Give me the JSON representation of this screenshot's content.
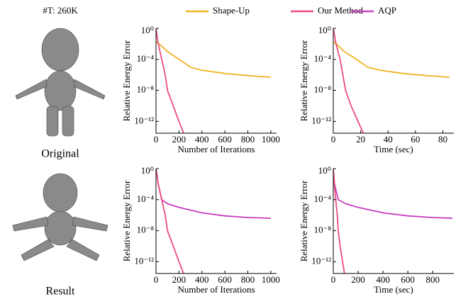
{
  "figure": {
    "triangle_count": "#T: 260K",
    "original_label": "Original",
    "result_label": "Result"
  },
  "chart_data": [
    {
      "type": "line",
      "ylabel": "Relative Energy Error",
      "xlabel": "Number of Iterations",
      "log_y": true,
      "xlim": [
        0,
        1050
      ],
      "xticks": [
        0,
        200,
        400,
        600,
        800,
        1000
      ],
      "ylim": [
        3e-14,
        1
      ],
      "yticks": [
        {
          "value": 1,
          "label": "10⁰"
        },
        {
          "value": 0.0001,
          "label": "10⁻⁴"
        },
        {
          "value": 1e-08,
          "label": "10⁻⁸"
        },
        {
          "value": 1e-12,
          "label": "10⁻¹²"
        }
      ],
      "series": [
        {
          "name": "Shape-Up",
          "color": "#f0b323",
          "x": [
            0,
            50,
            100,
            200,
            300,
            400,
            600,
            800,
            1000
          ],
          "values": [
            0.02,
            0.005,
            0.001,
            0.0001,
            1e-05,
            4e-06,
            1.5e-06,
            8e-07,
            5e-07
          ]
        },
        {
          "name": "Our Method",
          "color": "#ec4c7c",
          "x": [
            0,
            20,
            50,
            80,
            100,
            150,
            200,
            240
          ],
          "values": [
            1,
            0.01,
            0.0001,
            1e-06,
            1e-08,
            1e-10,
            1e-12,
            3e-14
          ]
        }
      ]
    },
    {
      "type": "line",
      "ylabel": "Relative Energy Error",
      "xlabel": "Time (sec)",
      "log_y": true,
      "xlim": [
        0,
        88
      ],
      "xticks": [
        0,
        20,
        40,
        60,
        80
      ],
      "ylim": [
        3e-14,
        1
      ],
      "yticks": [
        {
          "value": 1,
          "label": "10⁰"
        },
        {
          "value": 0.0001,
          "label": "10⁻⁴"
        },
        {
          "value": 1e-08,
          "label": "10⁻⁸"
        },
        {
          "value": 1e-12,
          "label": "10⁻¹²"
        }
      ],
      "series": [
        {
          "name": "Shape-Up",
          "color": "#f0b323",
          "x": [
            0,
            4,
            8,
            17,
            25,
            34,
            51,
            68,
            85
          ],
          "values": [
            0.02,
            0.005,
            0.001,
            0.0001,
            1e-05,
            4e-06,
            1.5e-06,
            8e-07,
            5e-07
          ]
        },
        {
          "name": "Our Method",
          "color": "#ec4c7c",
          "x": [
            0,
            2,
            5,
            7,
            9,
            13,
            18,
            22
          ],
          "values": [
            1,
            0.01,
            0.0001,
            1e-06,
            1e-08,
            1e-10,
            1e-12,
            3e-14
          ]
        }
      ]
    },
    {
      "type": "line",
      "ylabel": "Relative Energy Error",
      "xlabel": "Number of Iterations",
      "log_y": true,
      "xlim": [
        0,
        1050
      ],
      "xticks": [
        0,
        200,
        400,
        600,
        800,
        1000
      ],
      "ylim": [
        3e-14,
        1
      ],
      "yticks": [
        {
          "value": 1,
          "label": "10⁰"
        },
        {
          "value": 0.0001,
          "label": "10⁻⁴"
        },
        {
          "value": 1e-08,
          "label": "10⁻⁸"
        },
        {
          "value": 1e-12,
          "label": "10⁻¹²"
        }
      ],
      "series": [
        {
          "name": "AQP",
          "color": "#c83cc0",
          "x": [
            0,
            20,
            50,
            100,
            200,
            400,
            600,
            800,
            1000
          ],
          "values": [
            1,
            0.01,
            0.0001,
            3e-05,
            1e-05,
            2e-06,
            8e-07,
            5e-07,
            4e-07
          ]
        },
        {
          "name": "Our Method",
          "color": "#ec4c7c",
          "x": [
            0,
            20,
            50,
            80,
            100,
            150,
            200,
            240
          ],
          "values": [
            1,
            0.01,
            0.0001,
            1e-06,
            1e-08,
            1e-10,
            1e-12,
            3e-14
          ]
        }
      ]
    },
    {
      "type": "line",
      "ylabel": "Relative Energy Error",
      "xlabel": "Time (sec)",
      "log_y": true,
      "xlim": [
        0,
        970
      ],
      "xticks": [
        0,
        200,
        400,
        600,
        800
      ],
      "ylim": [
        3e-14,
        1
      ],
      "yticks": [
        {
          "value": 1,
          "label": "10⁰"
        },
        {
          "value": 0.0001,
          "label": "10⁻⁴"
        },
        {
          "value": 1e-08,
          "label": "10⁻⁸"
        },
        {
          "value": 1e-12,
          "label": "10⁻¹²"
        }
      ],
      "series": [
        {
          "name": "AQP",
          "color": "#c83cc0",
          "x": [
            0,
            10,
            40,
            100,
            200,
            400,
            600,
            800,
            960
          ],
          "values": [
            1,
            0.01,
            0.0001,
            3e-05,
            1e-05,
            2e-06,
            8e-07,
            5e-07,
            4e-07
          ]
        },
        {
          "name": "Our Method",
          "color": "#ec4c7c",
          "x": [
            0,
            8,
            20,
            32,
            40,
            55,
            75,
            90
          ],
          "values": [
            1,
            0.01,
            0.0001,
            1e-06,
            1e-08,
            1e-10,
            1e-12,
            3e-14
          ]
        }
      ]
    }
  ]
}
